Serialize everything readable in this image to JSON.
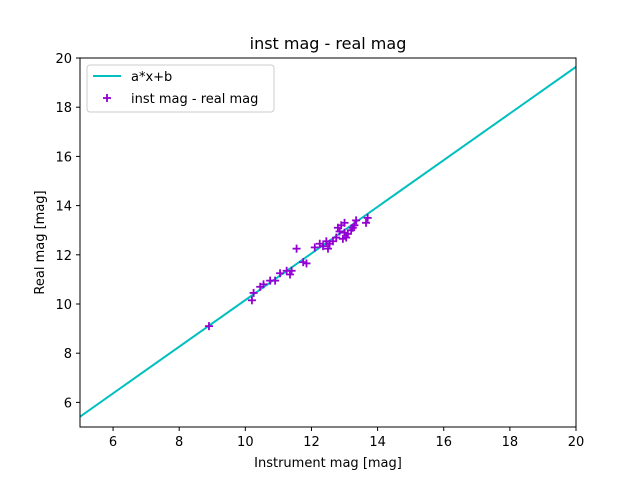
{
  "chart_data": {
    "type": "scatter",
    "title": "inst mag - real mag",
    "xlabel": "Instrument mag [mag]",
    "ylabel": "Real mag [mag]",
    "xlim": [
      5,
      20
    ],
    "ylim": [
      5,
      20
    ],
    "xticks": [
      6,
      8,
      10,
      12,
      14,
      16,
      18,
      20
    ],
    "yticks": [
      6,
      8,
      10,
      12,
      14,
      16,
      18,
      20
    ],
    "grid": false,
    "legend_position": "top-left",
    "series": [
      {
        "name": "a*x+b",
        "kind": "line",
        "color": "#00bfbf",
        "x": [
          5,
          20
        ],
        "y": [
          5.42,
          19.64
        ]
      },
      {
        "name": "inst mag - real mag",
        "kind": "scatter",
        "marker": "plus",
        "color": "#9400d3",
        "x": [
          8.9,
          10.2,
          10.25,
          10.45,
          10.55,
          10.75,
          10.9,
          11.05,
          11.25,
          11.35,
          11.4,
          11.55,
          11.75,
          11.85,
          12.1,
          12.25,
          12.35,
          12.45,
          12.5,
          12.55,
          12.65,
          12.75,
          12.8,
          12.85,
          12.9,
          12.95,
          13.0,
          13.0,
          13.05,
          13.1,
          13.2,
          13.25,
          13.3,
          13.35,
          13.65,
          13.7
        ],
        "y": [
          9.1,
          10.15,
          10.45,
          10.7,
          10.8,
          10.95,
          10.95,
          11.25,
          11.35,
          11.2,
          11.35,
          12.25,
          11.7,
          11.65,
          12.3,
          12.45,
          12.35,
          12.55,
          12.25,
          12.45,
          12.55,
          12.7,
          13.1,
          12.95,
          13.2,
          12.65,
          12.9,
          13.3,
          12.7,
          12.85,
          13.0,
          13.1,
          13.2,
          13.4,
          13.3,
          13.5
        ]
      }
    ]
  }
}
